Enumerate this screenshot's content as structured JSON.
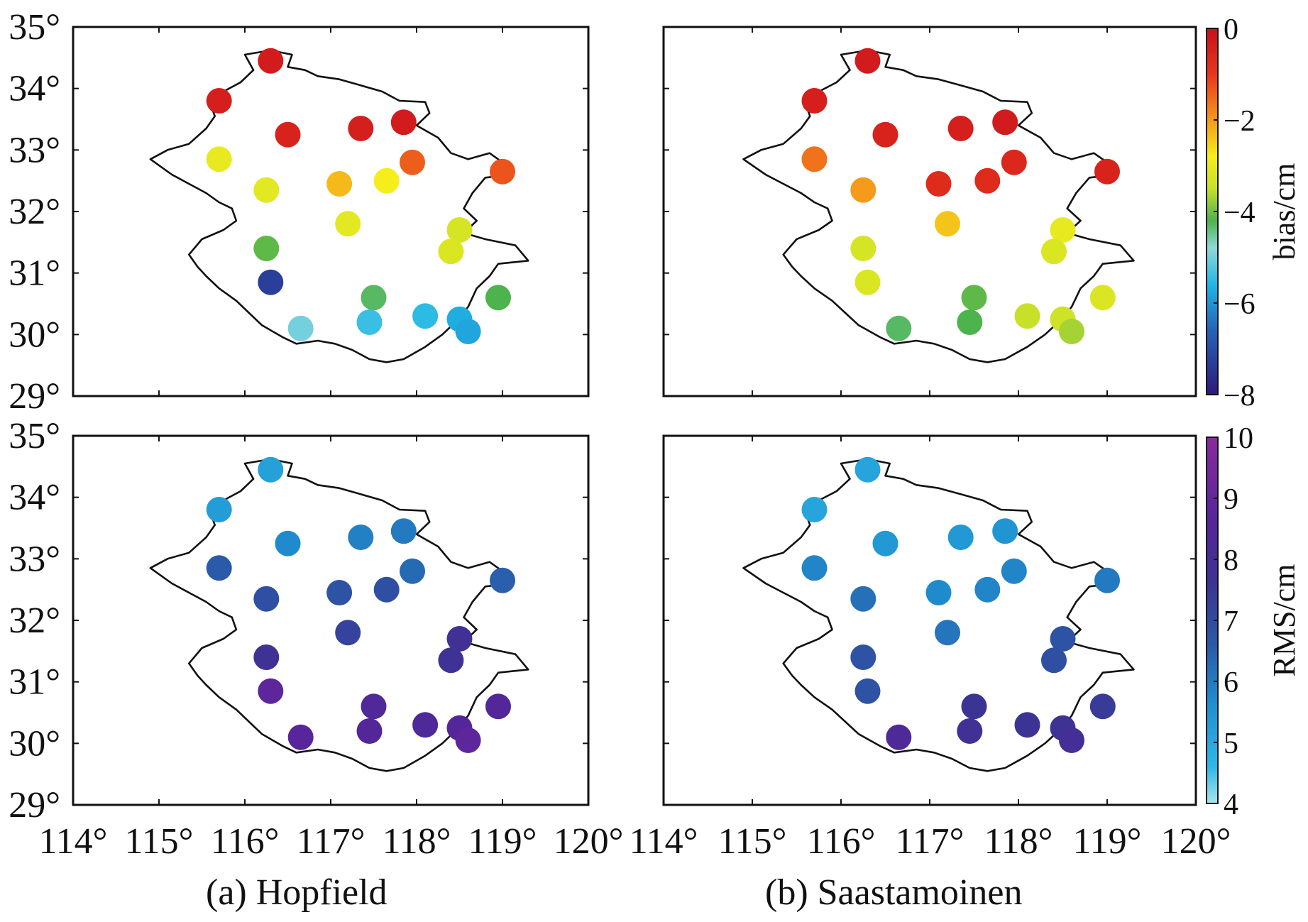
{
  "figure": {
    "caption_a": "(a) Hopfield",
    "caption_b": "(b) Saastamoinen"
  },
  "chart_data": [
    {
      "type": "scatter",
      "panel": "Hopfield bias",
      "xlim": [
        114,
        120
      ],
      "ylim": [
        29,
        35
      ],
      "x_ticks": [
        "114°",
        "115°",
        "116°",
        "117°",
        "118°",
        "119°",
        "120°"
      ],
      "y_ticks": [
        "29°",
        "30°",
        "31°",
        "32°",
        "33°",
        "34°",
        "35°"
      ],
      "colorbar": "bias",
      "points": [
        {
          "lon": 116.3,
          "lat": 34.45,
          "value": -0.3
        },
        {
          "lon": 115.7,
          "lat": 33.8,
          "value": -0.4
        },
        {
          "lon": 116.5,
          "lat": 33.25,
          "value": -0.5
        },
        {
          "lon": 117.35,
          "lat": 33.35,
          "value": -0.4
        },
        {
          "lon": 117.85,
          "lat": 33.45,
          "value": -0.3
        },
        {
          "lon": 115.7,
          "lat": 32.85,
          "value": -3.0
        },
        {
          "lon": 117.95,
          "lat": 32.8,
          "value": -1.4
        },
        {
          "lon": 119.0,
          "lat": 32.65,
          "value": -1.3
        },
        {
          "lon": 116.25,
          "lat": 32.35,
          "value": -3.1
        },
        {
          "lon": 117.1,
          "lat": 32.45,
          "value": -2.3
        },
        {
          "lon": 117.65,
          "lat": 32.5,
          "value": -2.8
        },
        {
          "lon": 117.2,
          "lat": 31.8,
          "value": -3.1
        },
        {
          "lon": 118.5,
          "lat": 31.7,
          "value": -3.3
        },
        {
          "lon": 116.25,
          "lat": 31.4,
          "value": -4.1
        },
        {
          "lon": 118.4,
          "lat": 31.35,
          "value": -3.2
        },
        {
          "lon": 116.3,
          "lat": 30.85,
          "value": -7.3
        },
        {
          "lon": 117.5,
          "lat": 30.6,
          "value": -4.3
        },
        {
          "lon": 118.95,
          "lat": 30.6,
          "value": -4.2
        },
        {
          "lon": 116.65,
          "lat": 30.1,
          "value": -5.0
        },
        {
          "lon": 117.45,
          "lat": 30.2,
          "value": -5.4
        },
        {
          "lon": 118.1,
          "lat": 30.3,
          "value": -5.5
        },
        {
          "lon": 118.5,
          "lat": 30.25,
          "value": -5.7
        },
        {
          "lon": 118.6,
          "lat": 30.05,
          "value": -5.8
        }
      ]
    },
    {
      "type": "scatter",
      "panel": "Saastamoinen bias",
      "xlim": [
        114,
        120
      ],
      "ylim": [
        29,
        35
      ],
      "x_ticks": [
        "114°",
        "115°",
        "116°",
        "117°",
        "118°",
        "119°",
        "120°"
      ],
      "y_ticks": [],
      "colorbar": "bias",
      "points": [
        {
          "lon": 116.3,
          "lat": 34.45,
          "value": -0.3
        },
        {
          "lon": 115.7,
          "lat": 33.8,
          "value": -0.4
        },
        {
          "lon": 116.5,
          "lat": 33.25,
          "value": -0.5
        },
        {
          "lon": 117.35,
          "lat": 33.35,
          "value": -0.4
        },
        {
          "lon": 117.85,
          "lat": 33.45,
          "value": -0.3
        },
        {
          "lon": 115.7,
          "lat": 32.85,
          "value": -1.6
        },
        {
          "lon": 117.95,
          "lat": 32.8,
          "value": -0.6
        },
        {
          "lon": 119.0,
          "lat": 32.65,
          "value": -0.5
        },
        {
          "lon": 116.25,
          "lat": 32.35,
          "value": -2.0
        },
        {
          "lon": 117.1,
          "lat": 32.45,
          "value": -0.7
        },
        {
          "lon": 117.65,
          "lat": 32.5,
          "value": -0.7
        },
        {
          "lon": 117.2,
          "lat": 31.8,
          "value": -2.4
        },
        {
          "lon": 118.5,
          "lat": 31.7,
          "value": -3.0
        },
        {
          "lon": 116.25,
          "lat": 31.4,
          "value": -3.3
        },
        {
          "lon": 118.4,
          "lat": 31.35,
          "value": -3.2
        },
        {
          "lon": 116.3,
          "lat": 30.85,
          "value": -3.2
        },
        {
          "lon": 117.5,
          "lat": 30.6,
          "value": -4.1
        },
        {
          "lon": 118.95,
          "lat": 30.6,
          "value": -3.2
        },
        {
          "lon": 116.65,
          "lat": 30.1,
          "value": -4.3
        },
        {
          "lon": 117.45,
          "lat": 30.2,
          "value": -4.2
        },
        {
          "lon": 118.1,
          "lat": 30.3,
          "value": -3.5
        },
        {
          "lon": 118.5,
          "lat": 30.25,
          "value": -3.4
        },
        {
          "lon": 118.6,
          "lat": 30.05,
          "value": -3.7
        }
      ]
    },
    {
      "type": "scatter",
      "panel": "Hopfield RMS",
      "xlim": [
        114,
        120
      ],
      "ylim": [
        29,
        35
      ],
      "x_ticks": [
        "114°",
        "115°",
        "116°",
        "117°",
        "118°",
        "119°",
        "120°"
      ],
      "y_ticks": [
        "29°",
        "30°",
        "31°",
        "32°",
        "33°",
        "34°",
        "35°"
      ],
      "colorbar": "rms",
      "points": [
        {
          "lon": 116.3,
          "lat": 34.45,
          "value": 5.2
        },
        {
          "lon": 115.7,
          "lat": 33.8,
          "value": 5.3
        },
        {
          "lon": 116.5,
          "lat": 33.25,
          "value": 5.7
        },
        {
          "lon": 117.35,
          "lat": 33.35,
          "value": 5.9
        },
        {
          "lon": 117.85,
          "lat": 33.45,
          "value": 6.0
        },
        {
          "lon": 115.7,
          "lat": 32.85,
          "value": 6.6
        },
        {
          "lon": 117.95,
          "lat": 32.8,
          "value": 6.3
        },
        {
          "lon": 119.0,
          "lat": 32.65,
          "value": 6.5
        },
        {
          "lon": 116.25,
          "lat": 32.35,
          "value": 6.9
        },
        {
          "lon": 117.1,
          "lat": 32.45,
          "value": 6.8
        },
        {
          "lon": 117.65,
          "lat": 32.5,
          "value": 6.9
        },
        {
          "lon": 117.2,
          "lat": 31.8,
          "value": 7.2
        },
        {
          "lon": 118.5,
          "lat": 31.7,
          "value": 7.8
        },
        {
          "lon": 116.25,
          "lat": 31.4,
          "value": 7.7
        },
        {
          "lon": 118.4,
          "lat": 31.35,
          "value": 7.7
        },
        {
          "lon": 116.3,
          "lat": 30.85,
          "value": 8.8
        },
        {
          "lon": 117.5,
          "lat": 30.6,
          "value": 8.4
        },
        {
          "lon": 118.95,
          "lat": 30.6,
          "value": 8.5
        },
        {
          "lon": 116.65,
          "lat": 30.1,
          "value": 8.7
        },
        {
          "lon": 117.45,
          "lat": 30.2,
          "value": 8.5
        },
        {
          "lon": 118.1,
          "lat": 30.3,
          "value": 8.3
        },
        {
          "lon": 118.5,
          "lat": 30.25,
          "value": 8.6
        },
        {
          "lon": 118.6,
          "lat": 30.05,
          "value": 8.8
        }
      ]
    },
    {
      "type": "scatter",
      "panel": "Saastamoinen RMS",
      "xlim": [
        114,
        120
      ],
      "ylim": [
        29,
        35
      ],
      "x_ticks": [
        "114°",
        "115°",
        "116°",
        "117°",
        "118°",
        "119°",
        "120°"
      ],
      "y_ticks": [],
      "colorbar": "rms",
      "points": [
        {
          "lon": 116.3,
          "lat": 34.45,
          "value": 5.1
        },
        {
          "lon": 115.7,
          "lat": 33.8,
          "value": 5.1
        },
        {
          "lon": 116.5,
          "lat": 33.25,
          "value": 5.4
        },
        {
          "lon": 117.35,
          "lat": 33.35,
          "value": 5.4
        },
        {
          "lon": 117.85,
          "lat": 33.45,
          "value": 5.5
        },
        {
          "lon": 115.7,
          "lat": 32.85,
          "value": 5.8
        },
        {
          "lon": 117.95,
          "lat": 32.8,
          "value": 5.8
        },
        {
          "lon": 119.0,
          "lat": 32.65,
          "value": 6.0
        },
        {
          "lon": 116.25,
          "lat": 32.35,
          "value": 6.2
        },
        {
          "lon": 117.1,
          "lat": 32.45,
          "value": 5.7
        },
        {
          "lon": 117.65,
          "lat": 32.5,
          "value": 5.8
        },
        {
          "lon": 117.2,
          "lat": 31.8,
          "value": 6.1
        },
        {
          "lon": 118.5,
          "lat": 31.7,
          "value": 6.8
        },
        {
          "lon": 116.25,
          "lat": 31.4,
          "value": 6.8
        },
        {
          "lon": 118.4,
          "lat": 31.35,
          "value": 6.9
        },
        {
          "lon": 116.3,
          "lat": 30.85,
          "value": 6.8
        },
        {
          "lon": 117.5,
          "lat": 30.6,
          "value": 7.6
        },
        {
          "lon": 118.95,
          "lat": 30.6,
          "value": 7.4
        },
        {
          "lon": 116.65,
          "lat": 30.1,
          "value": 8.3
        },
        {
          "lon": 117.45,
          "lat": 30.2,
          "value": 7.8
        },
        {
          "lon": 118.1,
          "lat": 30.3,
          "value": 7.6
        },
        {
          "lon": 118.5,
          "lat": 30.25,
          "value": 7.7
        },
        {
          "lon": 118.6,
          "lat": 30.05,
          "value": 7.9
        }
      ]
    }
  ],
  "colorbars": {
    "bias": {
      "label": "bias/cm",
      "min": -8,
      "max": 0,
      "tick_labels": [
        "0",
        "−2",
        "−4",
        "−6",
        "−8"
      ],
      "tick_values": [
        0,
        -2,
        -4,
        -6,
        -8
      ],
      "stops": [
        {
          "v": -8,
          "c": "#2e1a7a"
        },
        {
          "v": -6.6,
          "c": "#2563b8"
        },
        {
          "v": -5.6,
          "c": "#1fb6e6"
        },
        {
          "v": -4.8,
          "c": "#8fd8d8"
        },
        {
          "v": -4.2,
          "c": "#4db34d"
        },
        {
          "v": -3.5,
          "c": "#c8e02a"
        },
        {
          "v": -2.8,
          "c": "#f5ee1a"
        },
        {
          "v": -2.0,
          "c": "#f59a1a"
        },
        {
          "v": -1.0,
          "c": "#e8361c"
        },
        {
          "v": 0,
          "c": "#c8101c"
        }
      ]
    },
    "rms": {
      "label": "RMS/cm",
      "min": 4,
      "max": 10,
      "tick_labels": [
        "10",
        "9",
        "8",
        "7",
        "6",
        "5",
        "4"
      ],
      "tick_values": [
        10,
        9,
        8,
        7,
        6,
        5,
        4
      ],
      "stops": [
        {
          "v": 4,
          "c": "#a8e4ec"
        },
        {
          "v": 4.6,
          "c": "#2fb8e6"
        },
        {
          "v": 5.6,
          "c": "#1f90d0"
        },
        {
          "v": 6.6,
          "c": "#2a5aa8"
        },
        {
          "v": 7.6,
          "c": "#3c3494"
        },
        {
          "v": 8.6,
          "c": "#55259a"
        },
        {
          "v": 10,
          "c": "#8a2a9e"
        }
      ]
    }
  },
  "colors": {
    "outline": "#111111",
    "frame": "#111111"
  }
}
